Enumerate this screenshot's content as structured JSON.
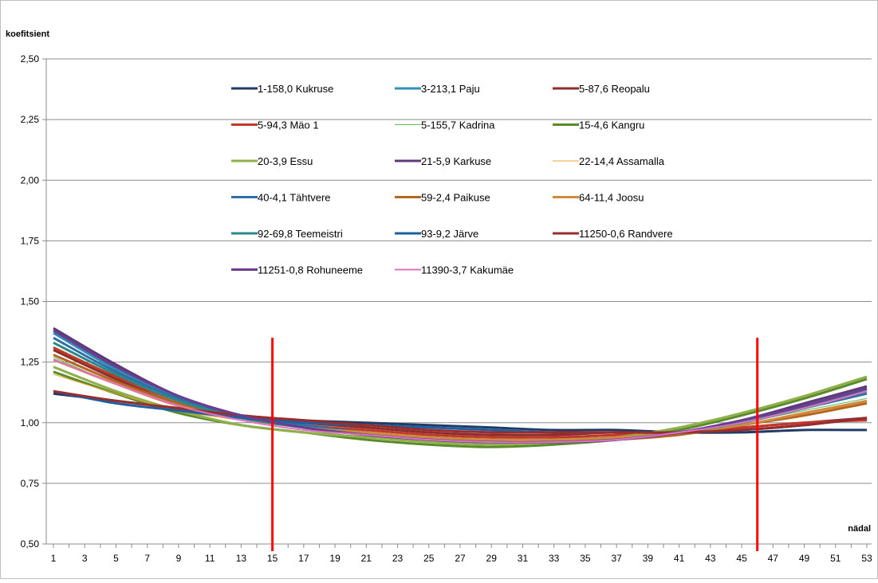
{
  "chart_data": {
    "type": "line",
    "title": "",
    "ylabel": "koefitsient",
    "xlabel": "nädal",
    "ylim": [
      0.5,
      2.5
    ],
    "yticks": [
      "0,50",
      "0,75",
      "1,00",
      "1,25",
      "1,50",
      "1,75",
      "2,00",
      "2,25",
      "2,50"
    ],
    "yticks_values": [
      0.5,
      0.75,
      1.0,
      1.25,
      1.5,
      1.75,
      2.0,
      2.25,
      2.5
    ],
    "xlim": [
      1,
      53
    ],
    "xticks": [
      "1",
      "3",
      "5",
      "7",
      "9",
      "11",
      "13",
      "15",
      "17",
      "19",
      "21",
      "23",
      "25",
      "27",
      "29",
      "31",
      "33",
      "35",
      "37",
      "39",
      "41",
      "43",
      "45",
      "47",
      "49",
      "51",
      "53"
    ],
    "xticks_values": [
      1,
      3,
      5,
      7,
      9,
      11,
      13,
      15,
      17,
      19,
      21,
      23,
      25,
      27,
      29,
      31,
      33,
      35,
      37,
      39,
      41,
      43,
      45,
      47,
      49,
      51,
      53
    ],
    "grid": "horizontal",
    "legend_position": "top-center, inside plot",
    "vertical_markers": [
      {
        "x": 15,
        "color": "#ff0000"
      },
      {
        "x": 46,
        "color": "#ff0000"
      }
    ],
    "series": [
      {
        "name": "1-158,0 Kukruse",
        "color": "#1f3b66",
        "width": 3,
        "points": [
          [
            1,
            1.12
          ],
          [
            5,
            1.09
          ],
          [
            9,
            1.06
          ],
          [
            13,
            1.03
          ],
          [
            17,
            1.01
          ],
          [
            21,
            1.0
          ],
          [
            25,
            0.99
          ],
          [
            29,
            0.98
          ],
          [
            33,
            0.97
          ],
          [
            37,
            0.97
          ],
          [
            41,
            0.96
          ],
          [
            45,
            0.96
          ],
          [
            49,
            0.97
          ],
          [
            53,
            0.97
          ]
        ]
      },
      {
        "name": "3-213,1 Paju",
        "color": "#2e8fb8",
        "width": 3,
        "points": [
          [
            1,
            1.37
          ],
          [
            5,
            1.22
          ],
          [
            9,
            1.1
          ],
          [
            13,
            1.02
          ],
          [
            17,
            0.98
          ],
          [
            21,
            0.95
          ],
          [
            25,
            0.93
          ],
          [
            29,
            0.92
          ],
          [
            33,
            0.93
          ],
          [
            37,
            0.94
          ],
          [
            41,
            0.96
          ],
          [
            45,
            1.0
          ],
          [
            49,
            1.07
          ],
          [
            53,
            1.14
          ]
        ]
      },
      {
        "name": "5-87,6 Reopalu",
        "color": "#8b2e2e",
        "width": 3,
        "points": [
          [
            1,
            1.3
          ],
          [
            5,
            1.18
          ],
          [
            9,
            1.08
          ],
          [
            13,
            1.03
          ],
          [
            17,
            1.0
          ],
          [
            21,
            0.98
          ],
          [
            25,
            0.96
          ],
          [
            29,
            0.95
          ],
          [
            33,
            0.95
          ],
          [
            37,
            0.96
          ],
          [
            41,
            0.96
          ],
          [
            45,
            0.98
          ],
          [
            49,
            1.0
          ],
          [
            53,
            1.02
          ]
        ]
      },
      {
        "name": "5-94,3 Mäo 1",
        "color": "#c0392b",
        "width": 3,
        "points": [
          [
            1,
            1.31
          ],
          [
            5,
            1.19
          ],
          [
            9,
            1.09
          ],
          [
            13,
            1.03
          ],
          [
            17,
            0.99
          ],
          [
            21,
            0.97
          ],
          [
            25,
            0.95
          ],
          [
            29,
            0.94
          ],
          [
            33,
            0.94
          ],
          [
            37,
            0.95
          ],
          [
            41,
            0.96
          ],
          [
            45,
            0.98
          ],
          [
            49,
            1.0
          ],
          [
            53,
            1.01
          ]
        ]
      },
      {
        "name": "5-155,7 Kadrina",
        "color": "#5cb85c",
        "width": 1,
        "points": [
          [
            1,
            1.27
          ],
          [
            5,
            1.16
          ],
          [
            9,
            1.07
          ],
          [
            13,
            1.01
          ],
          [
            17,
            0.97
          ],
          [
            21,
            0.94
          ],
          [
            25,
            0.92
          ],
          [
            29,
            0.91
          ],
          [
            33,
            0.92
          ],
          [
            37,
            0.93
          ],
          [
            41,
            0.96
          ],
          [
            45,
            1.0
          ],
          [
            49,
            1.05
          ],
          [
            53,
            1.1
          ]
        ]
      },
      {
        "name": "15-4,6 Kangru",
        "color": "#5a8a2a",
        "width": 3,
        "points": [
          [
            1,
            1.21
          ],
          [
            5,
            1.12
          ],
          [
            9,
            1.04
          ],
          [
            13,
            0.99
          ],
          [
            17,
            0.96
          ],
          [
            21,
            0.93
          ],
          [
            25,
            0.91
          ],
          [
            29,
            0.9
          ],
          [
            33,
            0.91
          ],
          [
            37,
            0.93
          ],
          [
            41,
            0.97
          ],
          [
            45,
            1.03
          ],
          [
            49,
            1.1
          ],
          [
            53,
            1.18
          ]
        ]
      },
      {
        "name": "20-3,9 Essu",
        "color": "#8fb04a",
        "width": 3,
        "points": [
          [
            1,
            1.23
          ],
          [
            5,
            1.13
          ],
          [
            9,
            1.05
          ],
          [
            13,
            0.99
          ],
          [
            17,
            0.96
          ],
          [
            21,
            0.94
          ],
          [
            25,
            0.92
          ],
          [
            29,
            0.91
          ],
          [
            33,
            0.92
          ],
          [
            37,
            0.94
          ],
          [
            41,
            0.98
          ],
          [
            45,
            1.04
          ],
          [
            49,
            1.11
          ],
          [
            53,
            1.19
          ]
        ]
      },
      {
        "name": "21-5,9 Karkuse",
        "color": "#5b3a7a",
        "width": 3,
        "points": [
          [
            1,
            1.39
          ],
          [
            5,
            1.24
          ],
          [
            9,
            1.11
          ],
          [
            13,
            1.03
          ],
          [
            17,
            0.98
          ],
          [
            21,
            0.95
          ],
          [
            25,
            0.93
          ],
          [
            29,
            0.92
          ],
          [
            33,
            0.93
          ],
          [
            37,
            0.94
          ],
          [
            41,
            0.96
          ],
          [
            45,
            1.01
          ],
          [
            49,
            1.08
          ],
          [
            53,
            1.15
          ]
        ]
      },
      {
        "name": "22-14,4 Assamalla",
        "color": "#f0a030",
        "width": 1,
        "points": [
          [
            1,
            1.2
          ],
          [
            5,
            1.12
          ],
          [
            9,
            1.05
          ],
          [
            13,
            1.01
          ],
          [
            17,
            0.98
          ],
          [
            21,
            0.96
          ],
          [
            25,
            0.94
          ],
          [
            29,
            0.93
          ],
          [
            33,
            0.93
          ],
          [
            37,
            0.94
          ],
          [
            41,
            0.96
          ],
          [
            45,
            0.99
          ],
          [
            49,
            1.04
          ],
          [
            53,
            1.08
          ]
        ]
      },
      {
        "name": "40-4,1 Tähtvere",
        "color": "#2f6fa8",
        "width": 3,
        "points": [
          [
            1,
            1.35
          ],
          [
            5,
            1.21
          ],
          [
            9,
            1.1
          ],
          [
            13,
            1.03
          ],
          [
            17,
            0.99
          ],
          [
            21,
            0.96
          ],
          [
            25,
            0.94
          ],
          [
            29,
            0.93
          ],
          [
            33,
            0.93
          ],
          [
            37,
            0.94
          ],
          [
            41,
            0.96
          ],
          [
            45,
            1.0
          ],
          [
            49,
            1.06
          ],
          [
            53,
            1.12
          ]
        ]
      },
      {
        "name": "59-2,4 Paikuse",
        "color": "#b5651d",
        "width": 3,
        "points": [
          [
            1,
            1.28
          ],
          [
            5,
            1.17
          ],
          [
            9,
            1.08
          ],
          [
            13,
            1.02
          ],
          [
            17,
            0.98
          ],
          [
            21,
            0.95
          ],
          [
            25,
            0.93
          ],
          [
            29,
            0.92
          ],
          [
            33,
            0.92
          ],
          [
            37,
            0.93
          ],
          [
            41,
            0.95
          ],
          [
            45,
            0.99
          ],
          [
            49,
            1.03
          ],
          [
            53,
            1.08
          ]
        ]
      },
      {
        "name": "64-11,4 Joosu",
        "color": "#d08a3a",
        "width": 3,
        "points": [
          [
            1,
            1.26
          ],
          [
            5,
            1.16
          ],
          [
            9,
            1.07
          ],
          [
            13,
            1.02
          ],
          [
            17,
            0.98
          ],
          [
            21,
            0.96
          ],
          [
            25,
            0.94
          ],
          [
            29,
            0.93
          ],
          [
            33,
            0.93
          ],
          [
            37,
            0.94
          ],
          [
            41,
            0.96
          ],
          [
            45,
            0.99
          ],
          [
            49,
            1.04
          ],
          [
            53,
            1.09
          ]
        ]
      },
      {
        "name": "92-69,8 Teemeistri",
        "color": "#2a8a8a",
        "width": 3,
        "points": [
          [
            1,
            1.33
          ],
          [
            5,
            1.2
          ],
          [
            9,
            1.09
          ],
          [
            13,
            1.02
          ],
          [
            17,
            0.98
          ],
          [
            21,
            0.95
          ],
          [
            25,
            0.93
          ],
          [
            29,
            0.92
          ],
          [
            33,
            0.92
          ],
          [
            37,
            0.93
          ],
          [
            41,
            0.96
          ],
          [
            45,
            1.0
          ],
          [
            49,
            1.06
          ],
          [
            53,
            1.13
          ]
        ]
      },
      {
        "name": "93-9,2 Järve",
        "color": "#1e5fa0",
        "width": 3,
        "points": [
          [
            1,
            1.13
          ],
          [
            5,
            1.08
          ],
          [
            9,
            1.05
          ],
          [
            13,
            1.02
          ],
          [
            17,
            1.0
          ],
          [
            21,
            0.99
          ],
          [
            25,
            0.98
          ],
          [
            29,
            0.97
          ],
          [
            33,
            0.96
          ],
          [
            37,
            0.96
          ],
          [
            41,
            0.96
          ],
          [
            45,
            0.97
          ],
          [
            49,
            0.99
          ],
          [
            53,
            1.02
          ]
        ]
      },
      {
        "name": "11250-0,6 Randvere",
        "color": "#9b2c2c",
        "width": 3,
        "points": [
          [
            1,
            1.13
          ],
          [
            5,
            1.09
          ],
          [
            9,
            1.06
          ],
          [
            13,
            1.03
          ],
          [
            17,
            1.01
          ],
          [
            21,
            0.99
          ],
          [
            25,
            0.97
          ],
          [
            29,
            0.96
          ],
          [
            33,
            0.96
          ],
          [
            37,
            0.96
          ],
          [
            41,
            0.96
          ],
          [
            45,
            0.97
          ],
          [
            49,
            0.99
          ],
          [
            53,
            1.02
          ]
        ]
      },
      {
        "name": "11251-0,8 Rohuneeme",
        "color": "#6a3d8f",
        "width": 3,
        "points": [
          [
            1,
            1.38
          ],
          [
            5,
            1.23
          ],
          [
            9,
            1.11
          ],
          [
            13,
            1.03
          ],
          [
            17,
            0.98
          ],
          [
            21,
            0.95
          ],
          [
            25,
            0.93
          ],
          [
            29,
            0.92
          ],
          [
            33,
            0.92
          ],
          [
            37,
            0.93
          ],
          [
            41,
            0.96
          ],
          [
            45,
            1.01
          ],
          [
            49,
            1.07
          ],
          [
            53,
            1.14
          ]
        ]
      },
      {
        "name": "11390-3,7 Kakumäe",
        "color": "#e070c0",
        "width": 2,
        "points": [
          [
            1,
            1.26
          ],
          [
            5,
            1.16
          ],
          [
            9,
            1.07
          ],
          [
            13,
            1.01
          ],
          [
            17,
            0.97
          ],
          [
            21,
            0.95
          ],
          [
            25,
            0.93
          ],
          [
            29,
            0.92
          ],
          [
            33,
            0.92
          ],
          [
            37,
            0.93
          ],
          [
            41,
            0.96
          ],
          [
            45,
            1.0
          ],
          [
            49,
            1.06
          ],
          [
            53,
            1.13
          ]
        ]
      }
    ]
  }
}
